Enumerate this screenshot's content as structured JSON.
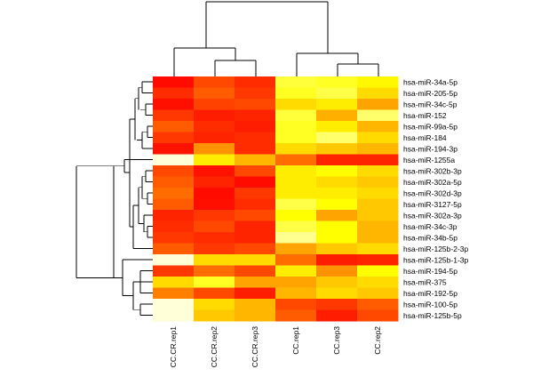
{
  "chart_data": {
    "type": "heatmap",
    "title": "",
    "color_scale": {
      "low_color": "#ff0000",
      "mid_color": "#ffff00",
      "high_color": "#ffffd8",
      "min": 0,
      "max": 10
    },
    "columns": [
      "CC.CR.rep1",
      "CC.CR.rep2",
      "CC.CR.rep3",
      "CC.rep1",
      "CC.rep3",
      "CC.rep2"
    ],
    "rows": [
      "hsa-miR-34a-5p",
      "hsa-miR-205-5p",
      "hsa-miR-34c-5p",
      "hsa-miR-152",
      "hsa-miR-99a-5p",
      "hsa-miR-184",
      "hsa-miR-194-3p",
      "hsa-miR-1255a",
      "hsa-miR-302b-3p",
      "hsa-miR-302a-5p",
      "hsa-miR-302d-3p",
      "hsa-miR-3127-5p",
      "hsa-miR-302a-3p",
      "hsa-miR-34c-3p",
      "hsa-miR-34b-5p",
      "hsa-miR-125b-2-3p",
      "hsa-miR-125b-1-3p",
      "hsa-miR-194-5p",
      "hsa-miR-375",
      "hsa-miR-192-5p",
      "hsa-miR-100-5p",
      "hsa-miR-125b-5p"
    ],
    "values": [
      [
        0.3,
        2.0,
        1.2,
        7.8,
        7.5,
        6.8
      ],
      [
        1.2,
        2.5,
        1.5,
        7.5,
        8.0,
        6.0
      ],
      [
        0.4,
        1.8,
        2.0,
        6.0,
        6.5,
        4.5
      ],
      [
        1.5,
        0.8,
        1.0,
        7.8,
        4.8,
        8.5
      ],
      [
        2.5,
        1.2,
        0.8,
        7.5,
        6.5,
        5.0
      ],
      [
        1.5,
        1.0,
        1.2,
        7.5,
        8.5,
        6.0
      ],
      [
        0.5,
        4.0,
        1.2,
        6.0,
        5.5,
        5.0
      ],
      [
        10.0,
        6.5,
        5.0,
        3.0,
        1.0,
        1.0
      ],
      [
        2.0,
        0.5,
        2.0,
        6.5,
        7.0,
        6.0
      ],
      [
        2.5,
        1.0,
        0.3,
        6.5,
        6.0,
        5.5
      ],
      [
        3.0,
        0.3,
        1.5,
        6.5,
        6.5,
        6.0
      ],
      [
        2.5,
        0.4,
        1.2,
        8.0,
        7.0,
        5.5
      ],
      [
        1.0,
        1.5,
        2.0,
        7.0,
        4.5,
        5.5
      ],
      [
        1.2,
        2.0,
        1.0,
        8.0,
        7.0,
        5.0
      ],
      [
        1.5,
        1.2,
        1.0,
        9.0,
        7.0,
        5.0
      ],
      [
        2.5,
        1.5,
        2.0,
        4.5,
        5.5,
        6.0
      ],
      [
        10.0,
        6.0,
        6.0,
        3.0,
        0.8,
        1.0
      ],
      [
        1.5,
        3.0,
        2.0,
        6.5,
        4.0,
        7.0
      ],
      [
        6.0,
        7.5,
        4.5,
        4.5,
        5.5,
        6.0
      ],
      [
        3.5,
        2.0,
        0.8,
        5.0,
        6.0,
        5.5
      ],
      [
        10.0,
        6.0,
        5.0,
        2.0,
        1.5,
        2.5
      ],
      [
        10.0,
        5.5,
        5.0,
        2.5,
        0.8,
        2.0
      ]
    ],
    "row_dendrogram": "hierarchical clustering of rows",
    "column_dendrogram": "hierarchical clustering of columns: {CC.CR.rep1, CC.CR.rep2, CC.CR.rep3} vs {CC.rep1, CC.rep3, CC.rep2}"
  }
}
